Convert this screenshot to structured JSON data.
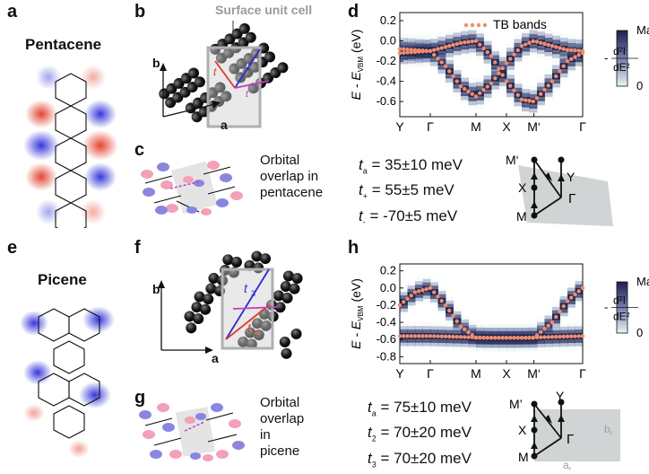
{
  "top": {
    "letters": {
      "a": "a",
      "b": "b",
      "c": "c",
      "d": "d"
    },
    "molecule_title": "Pentacene",
    "surface_cell_label": "Surface unit cell",
    "axis_a": "a",
    "axis_b": "b",
    "overlap_lines": [
      "Orbital",
      "overlap in",
      "pentacene"
    ],
    "params": [
      {
        "sym": "t",
        "sub": "a",
        "value": "= 35±10 meV"
      },
      {
        "sym": "t",
        "sub": "+",
        "value": "= 55±5 meV"
      },
      {
        "sym": "t",
        "sub": "-",
        "value": "= -70±5 meV"
      }
    ],
    "bz_labels": {
      "Mp": "M‘",
      "Y": "Y",
      "X": "X",
      "G": "Γ",
      "M": "M"
    }
  },
  "bottom": {
    "letters": {
      "e": "e",
      "f": "f",
      "g": "g",
      "h": "h"
    },
    "molecule_title": "Picene",
    "axis_a": "a",
    "axis_b": "b",
    "overlap_lines": [
      "Orbital",
      "overlap",
      "in",
      "picene"
    ],
    "params": [
      {
        "sym": "t",
        "sub": "a",
        "value": "= 75±10 meV"
      },
      {
        "sym": "t",
        "sub": "2",
        "value": "= 70±20 meV"
      },
      {
        "sym": "t",
        "sub": "3",
        "value": "= 70±20 meV"
      }
    ],
    "bz_labels": {
      "Mp": "M’",
      "Y": "Y",
      "X": "X",
      "G": "Γ",
      "M": "M",
      "ar": "a",
      "br": "b",
      "sub_r": "r"
    }
  },
  "colors": {
    "red": "#e03b2a",
    "blue": "#2c2cd0",
    "tb": "#f08c6c",
    "cmap_dark": "#1c1f4d",
    "cmap_light": "#e8f6f0"
  },
  "chart_data": [
    {
      "type": "line",
      "panel": "d",
      "legend": "TB bands",
      "ylabel": "E - E_VBM (eV)",
      "ylabel_main": "E - E",
      "ylabel_sub": "VBM",
      "ylabel_unit": "(eV)",
      "ylim": [
        -0.75,
        0.28
      ],
      "yticks": [
        "0.2",
        "0.0",
        "-0.2",
        "-0.4",
        "-0.6"
      ],
      "ytick_values": [
        0.2,
        0.0,
        -0.2,
        -0.4,
        -0.6
      ],
      "kpoints": [
        "Y",
        "Γ",
        "M",
        "X",
        "M‘",
        "Γ"
      ],
      "kpos": [
        0,
        1,
        2.5,
        3.5,
        4.4,
        6
      ],
      "series": [
        {
          "name": "band 1",
          "x": [
            0,
            1,
            1.5,
            2,
            2.5,
            3,
            3.5,
            4,
            4.4,
            5,
            5.5,
            6
          ],
          "y": [
            -0.08,
            -0.1,
            -0.25,
            -0.45,
            -0.55,
            -0.42,
            -0.22,
            -0.05,
            0.0,
            -0.05,
            -0.09,
            -0.1
          ]
        },
        {
          "name": "band 2",
          "x": [
            0,
            1,
            1.5,
            2,
            2.5,
            3,
            3.5,
            4,
            4.4,
            5,
            5.5,
            6
          ],
          "y": [
            -0.12,
            -0.1,
            -0.06,
            -0.02,
            0.0,
            -0.15,
            -0.4,
            -0.58,
            -0.6,
            -0.4,
            -0.2,
            -0.12
          ]
        }
      ],
      "colorbar": {
        "max": "Max",
        "min": "0",
        "label_num": "d²I",
        "label_den": "dE²",
        "prefix": "-"
      }
    },
    {
      "type": "line",
      "panel": "h",
      "ylabel": "E - E_VBM (eV)",
      "ylabel_main": "E - E",
      "ylabel_sub": "VBM",
      "ylabel_unit": "(eV)",
      "ylim": [
        -0.88,
        0.28
      ],
      "yticks": [
        "0.2",
        "0.0",
        "-0.2",
        "-0.4",
        "-0.6",
        "-0.8"
      ],
      "ytick_values": [
        0.2,
        0.0,
        -0.2,
        -0.4,
        -0.6,
        -0.8
      ],
      "kpoints": [
        "Y",
        "Γ",
        "M",
        "X",
        "M‘",
        "Γ"
      ],
      "kpos": [
        0,
        1,
        2.5,
        3.5,
        4.4,
        6
      ],
      "series": [
        {
          "name": "band 1",
          "x": [
            0,
            0.5,
            1,
            1.5,
            2,
            2.5,
            3,
            3.5,
            4,
            4.4,
            5,
            5.5,
            6
          ],
          "y": [
            -0.2,
            -0.05,
            0.0,
            -0.2,
            -0.45,
            -0.58,
            -0.58,
            -0.58,
            -0.58,
            -0.58,
            -0.4,
            -0.15,
            0.0
          ]
        },
        {
          "name": "band 2",
          "x": [
            0,
            1,
            2,
            3,
            4,
            5,
            6
          ],
          "y": [
            -0.56,
            -0.56,
            -0.57,
            -0.58,
            -0.58,
            -0.57,
            -0.56
          ]
        }
      ],
      "colorbar": {
        "max": "Max",
        "min": "0",
        "label_num": "d²I",
        "label_den": "dE²",
        "prefix": "-"
      }
    }
  ]
}
